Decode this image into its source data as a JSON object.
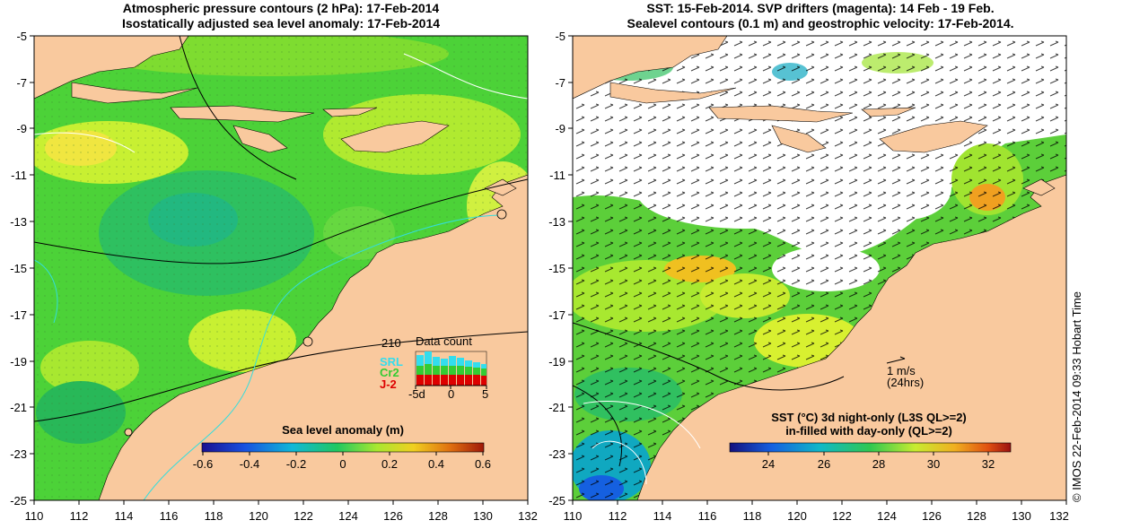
{
  "left_panel": {
    "title_line1": "Atmospheric pressure contours (2 hPa): 17-Feb-2014",
    "title_line2": "Isostatically adjusted sea level anomaly: 17-Feb-2014",
    "colorbar_title": "Sea level anomaly (m)",
    "colorbar_ticks": [
      "-0.6",
      "-0.4",
      "-0.2",
      "0",
      "0.2",
      "0.4",
      "0.6"
    ],
    "inset": {
      "max_label": "210",
      "title": "Data count",
      "legend": [
        "SRL",
        "Cr2",
        "J-2"
      ],
      "legend_colors": [
        "#33ddee",
        "#33cc33",
        "#dd0000"
      ],
      "x_ticks": [
        "-5d",
        "0",
        "5"
      ]
    }
  },
  "right_panel": {
    "title_line1": "SST: 15-Feb-2014. SVP drifters (magenta): 14 Feb - 19 Feb.",
    "title_line2": "Sealevel contours (0.1 m) and geostrophic velocity: 17-Feb-2014.",
    "scale_label_1": "1 m/s",
    "scale_label_2": "(24hrs)",
    "colorbar_title_1": "SST (°C)  3d night-only (L3S QL>=2)",
    "colorbar_title_2": "in-filled with day-only (QL>=2)",
    "colorbar_ticks": [
      "24",
      "26",
      "28",
      "30",
      "32"
    ]
  },
  "axes": {
    "y_ticks": [
      "-5",
      "-7",
      "-9",
      "-11",
      "-13",
      "-15",
      "-17",
      "-19",
      "-21",
      "-23",
      "-25"
    ],
    "x_ticks": [
      "110",
      "112",
      "114",
      "116",
      "118",
      "120",
      "122",
      "124",
      "126",
      "128",
      "130",
      "132"
    ]
  },
  "credit": "© IMOS 22-Feb-2014 09:33 Hobart Time",
  "colors": {
    "land": "#f9c99e",
    "ocean_green": "#4cd238",
    "ocean_yellow": "#c8f032",
    "cloud": "#ffffff"
  }
}
